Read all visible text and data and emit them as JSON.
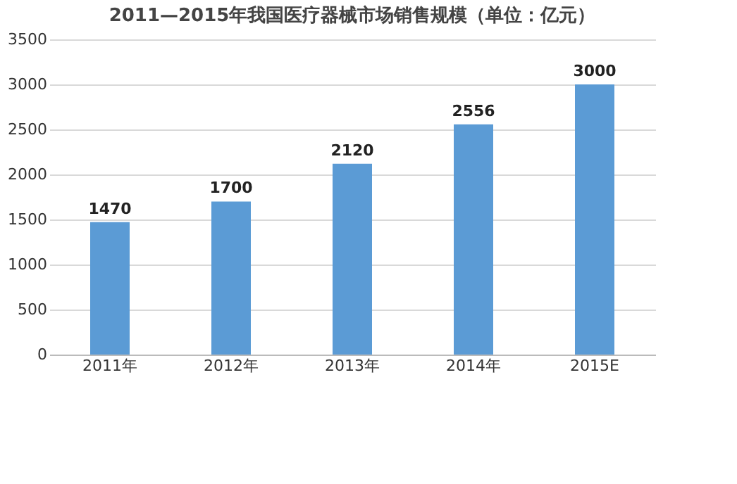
{
  "chart_data": {
    "type": "bar",
    "title": "2011—2015年我国医疗器械市场销售规模（单位：亿元）",
    "categories": [
      "2011年",
      "2012年",
      "2013年",
      "2014年",
      "2015E"
    ],
    "values": [
      1470,
      1700,
      2120,
      2556,
      3000
    ],
    "color": "#5b9bd5",
    "ylim": [
      0,
      3500
    ],
    "yticks": [
      0,
      500,
      1000,
      1500,
      2000,
      2500,
      3000,
      3500
    ],
    "grid": "y",
    "data_labels": true
  }
}
